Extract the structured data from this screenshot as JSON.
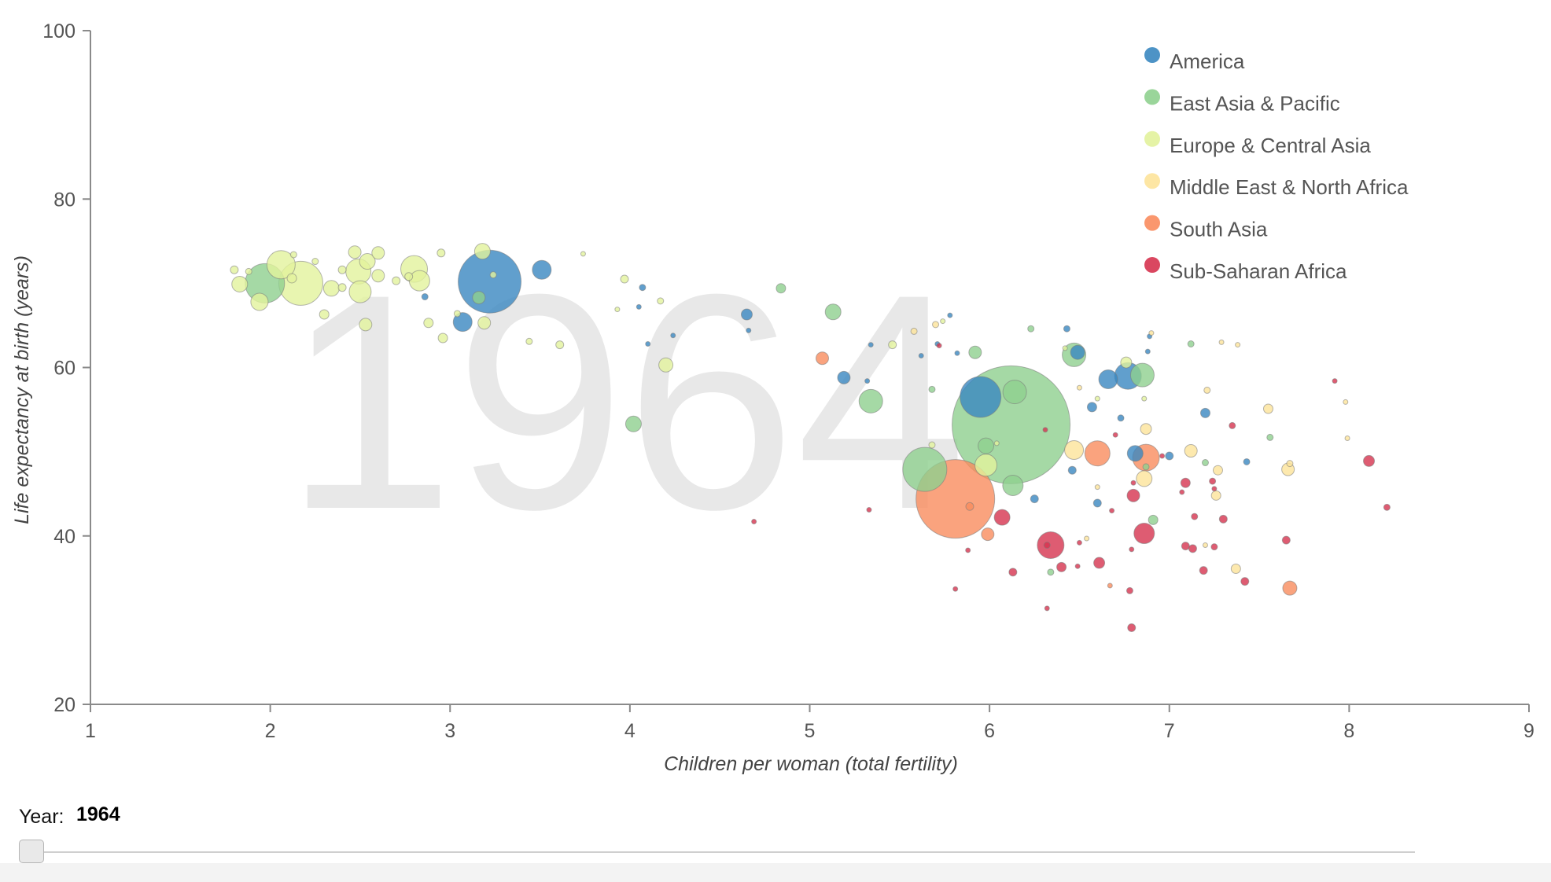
{
  "year_control": {
    "label": "Year:",
    "value": "1964",
    "slider_value": 0
  },
  "chart_data": {
    "type": "scatter",
    "title": "",
    "watermark": "1964",
    "xlabel": "Children per woman (total fertility)",
    "ylabel": "Life expectancy at birth (years)",
    "xlim": [
      1,
      9
    ],
    "ylim": [
      20,
      100
    ],
    "xticks": [
      "1",
      "2",
      "3",
      "4",
      "5",
      "6",
      "7",
      "8",
      "9"
    ],
    "yticks": [
      "20",
      "40",
      "60",
      "80",
      "100"
    ],
    "legend_position": "top-right",
    "size_encoding": "bubble area represents population (relative sizes estimated)",
    "series": [
      {
        "name": "America",
        "color": "#3a87c0",
        "points": [
          [
            3.22,
            70.2,
            40
          ],
          [
            3.51,
            71.6,
            12
          ],
          [
            3.07,
            65.4,
            12
          ],
          [
            5.95,
            56.5,
            26
          ],
          [
            6.77,
            59.0,
            17
          ],
          [
            6.66,
            58.6,
            12
          ],
          [
            6.49,
            61.8,
            9
          ],
          [
            5.19,
            58.8,
            8
          ],
          [
            4.65,
            66.3,
            7
          ],
          [
            6.81,
            49.8,
            10
          ],
          [
            7.0,
            49.5,
            5
          ],
          [
            7.2,
            54.6,
            6
          ],
          [
            7.43,
            48.8,
            4
          ],
          [
            6.73,
            54.0,
            4
          ],
          [
            6.43,
            64.6,
            4
          ],
          [
            6.46,
            47.8,
            5
          ],
          [
            6.57,
            55.3,
            6
          ],
          [
            6.25,
            44.4,
            5
          ],
          [
            6.6,
            43.9,
            5
          ],
          [
            2.86,
            68.4,
            4
          ],
          [
            4.07,
            69.5,
            4
          ],
          [
            4.1,
            62.8,
            3
          ],
          [
            4.24,
            63.8,
            3
          ],
          [
            4.05,
            67.2,
            3
          ],
          [
            5.82,
            61.7,
            3
          ],
          [
            5.62,
            61.4,
            3
          ],
          [
            5.34,
            62.7,
            3
          ],
          [
            5.32,
            58.4,
            3
          ],
          [
            5.71,
            62.8,
            3
          ],
          [
            6.89,
            63.7,
            3
          ],
          [
            6.88,
            61.9,
            3
          ],
          [
            5.78,
            66.2,
            3
          ],
          [
            4.66,
            64.4,
            3
          ]
        ]
      },
      {
        "name": "East Asia & Pacific",
        "color": "#8fd08f",
        "points": [
          [
            6.12,
            53.2,
            75
          ],
          [
            5.64,
            47.9,
            28
          ],
          [
            1.97,
            70.0,
            25
          ],
          [
            5.34,
            56.0,
            15
          ],
          [
            6.14,
            57.1,
            15
          ],
          [
            6.85,
            59.1,
            15
          ],
          [
            6.47,
            61.5,
            15
          ],
          [
            6.13,
            46.0,
            13
          ],
          [
            5.13,
            66.6,
            10
          ],
          [
            4.02,
            53.3,
            10
          ],
          [
            5.98,
            50.7,
            10
          ],
          [
            5.92,
            61.8,
            8
          ],
          [
            3.16,
            68.3,
            8
          ],
          [
            4.84,
            69.4,
            6
          ],
          [
            6.91,
            41.9,
            6
          ],
          [
            6.34,
            35.7,
            4
          ],
          [
            6.87,
            48.2,
            4
          ],
          [
            7.12,
            62.8,
            4
          ],
          [
            7.56,
            51.7,
            4
          ],
          [
            6.23,
            64.6,
            4
          ],
          [
            5.68,
            57.4,
            4
          ],
          [
            7.2,
            48.7,
            4
          ]
        ]
      },
      {
        "name": "Europe & Central Asia",
        "color": "#e2f29c",
        "points": [
          [
            2.17,
            70.0,
            28
          ],
          [
            2.06,
            72.2,
            18
          ],
          [
            2.49,
            71.4,
            16
          ],
          [
            2.8,
            71.7,
            17
          ],
          [
            2.5,
            69.0,
            14
          ],
          [
            2.83,
            70.3,
            13
          ],
          [
            1.94,
            67.8,
            11
          ],
          [
            3.18,
            73.8,
            10
          ],
          [
            1.83,
            69.9,
            10
          ],
          [
            2.54,
            72.6,
            10
          ],
          [
            2.6,
            73.6,
            8
          ],
          [
            2.47,
            73.7,
            8
          ],
          [
            2.53,
            65.1,
            8
          ],
          [
            2.6,
            70.9,
            8
          ],
          [
            2.34,
            69.4,
            10
          ],
          [
            3.19,
            65.3,
            8
          ],
          [
            4.2,
            60.3,
            9
          ],
          [
            5.98,
            48.4,
            14
          ],
          [
            6.76,
            60.6,
            7
          ],
          [
            2.12,
            70.6,
            6
          ],
          [
            2.4,
            71.6,
            5
          ],
          [
            2.7,
            70.3,
            5
          ],
          [
            2.25,
            72.6,
            4
          ],
          [
            2.3,
            66.3,
            6
          ],
          [
            2.88,
            65.3,
            6
          ],
          [
            1.88,
            71.4,
            4
          ],
          [
            1.8,
            71.6,
            5
          ],
          [
            2.96,
            63.5,
            6
          ],
          [
            3.04,
            66.4,
            4
          ],
          [
            3.61,
            62.7,
            5
          ],
          [
            3.44,
            63.1,
            4
          ],
          [
            3.97,
            70.5,
            5
          ],
          [
            4.17,
            67.9,
            4
          ],
          [
            5.46,
            62.7,
            5
          ],
          [
            3.74,
            73.5,
            3
          ],
          [
            2.95,
            73.6,
            5
          ],
          [
            2.4,
            69.5,
            5
          ],
          [
            2.77,
            70.8,
            5
          ],
          [
            3.24,
            71.0,
            4
          ],
          [
            2.13,
            73.4,
            4
          ],
          [
            6.86,
            56.3,
            3
          ],
          [
            6.04,
            51.0,
            3
          ],
          [
            6.42,
            62.3,
            3
          ],
          [
            5.74,
            65.5,
            3
          ],
          [
            3.93,
            66.9,
            3
          ],
          [
            6.6,
            56.3,
            3
          ],
          [
            5.68,
            50.8,
            4
          ]
        ]
      },
      {
        "name": "Middle East & North Africa",
        "color": "#fde39a",
        "points": [
          [
            6.47,
            50.2,
            12
          ],
          [
            7.12,
            50.1,
            8
          ],
          [
            7.66,
            47.9,
            8
          ],
          [
            6.86,
            46.8,
            10
          ],
          [
            6.87,
            52.7,
            7
          ],
          [
            7.27,
            47.8,
            6
          ],
          [
            7.55,
            55.1,
            6
          ],
          [
            7.37,
            36.1,
            6
          ],
          [
            7.26,
            44.8,
            6
          ],
          [
            7.67,
            48.6,
            4
          ],
          [
            7.98,
            55.9,
            3
          ],
          [
            7.99,
            51.6,
            3
          ],
          [
            7.29,
            63.0,
            3
          ],
          [
            7.38,
            62.7,
            3
          ],
          [
            5.58,
            64.3,
            4
          ],
          [
            5.7,
            65.1,
            4
          ],
          [
            6.5,
            57.6,
            3
          ],
          [
            7.21,
            57.3,
            4
          ],
          [
            6.54,
            39.7,
            3
          ],
          [
            6.9,
            64.1,
            3
          ],
          [
            7.2,
            38.9,
            3
          ],
          [
            6.6,
            45.8,
            3
          ]
        ]
      },
      {
        "name": "South Asia",
        "color": "#f98c5e",
        "points": [
          [
            5.81,
            44.4,
            50
          ],
          [
            6.6,
            49.8,
            16
          ],
          [
            6.87,
            49.3,
            17
          ],
          [
            7.67,
            33.8,
            9
          ],
          [
            5.07,
            61.1,
            8
          ],
          [
            5.99,
            40.2,
            8
          ],
          [
            5.89,
            43.5,
            5
          ],
          [
            6.67,
            34.1,
            3
          ]
        ]
      },
      {
        "name": "Sub-Saharan Africa",
        "color": "#d6334f",
        "points": [
          [
            6.34,
            38.9,
            17
          ],
          [
            6.86,
            40.3,
            13
          ],
          [
            6.07,
            42.2,
            10
          ],
          [
            6.8,
            44.8,
            8
          ],
          [
            6.61,
            36.8,
            7
          ],
          [
            8.11,
            48.9,
            7
          ],
          [
            7.09,
            46.3,
            6
          ],
          [
            6.4,
            36.3,
            6
          ],
          [
            7.3,
            42.0,
            5
          ],
          [
            7.09,
            38.8,
            5
          ],
          [
            7.13,
            38.5,
            5
          ],
          [
            7.65,
            39.5,
            5
          ],
          [
            7.19,
            35.9,
            5
          ],
          [
            7.42,
            34.6,
            5
          ],
          [
            6.13,
            35.7,
            5
          ],
          [
            6.79,
            29.1,
            5
          ],
          [
            7.25,
            38.7,
            4
          ],
          [
            7.35,
            53.1,
            4
          ],
          [
            7.24,
            46.5,
            4
          ],
          [
            7.14,
            42.3,
            4
          ],
          [
            8.21,
            43.4,
            4
          ],
          [
            6.32,
            31.4,
            3
          ],
          [
            6.78,
            33.5,
            4
          ],
          [
            6.79,
            38.4,
            3
          ],
          [
            6.68,
            43.0,
            3
          ],
          [
            6.5,
            39.2,
            3
          ],
          [
            5.33,
            43.1,
            3
          ],
          [
            4.69,
            41.7,
            3
          ],
          [
            5.81,
            33.7,
            3
          ],
          [
            6.31,
            52.6,
            3
          ],
          [
            6.7,
            52.0,
            3
          ],
          [
            6.96,
            49.5,
            3
          ],
          [
            7.25,
            45.6,
            3
          ],
          [
            7.92,
            58.4,
            3
          ],
          [
            5.72,
            62.6,
            3
          ],
          [
            5.88,
            38.3,
            3
          ],
          [
            6.8,
            46.3,
            3
          ],
          [
            6.49,
            36.4,
            3
          ],
          [
            7.07,
            45.2,
            3
          ],
          [
            6.32,
            38.9,
            4
          ]
        ]
      }
    ]
  }
}
